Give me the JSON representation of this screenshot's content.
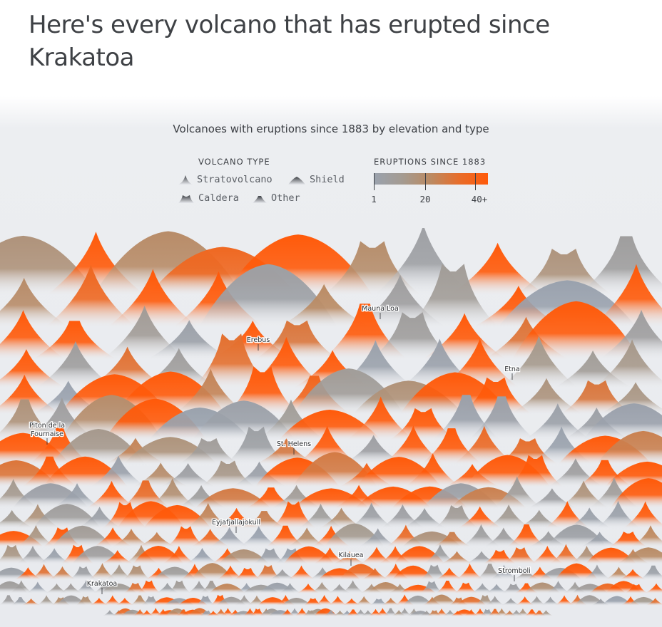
{
  "page": {
    "headline": "Here's every volcano that has erupted since Krakatoa"
  },
  "chart_data": {
    "type": "ridge-glyph",
    "title": "Volcanoes with eruptions since 1883 by elevation and type",
    "legend": {
      "type_title": "VOLCANO TYPE",
      "types": [
        "Stratovolcano",
        "Shield",
        "Caldera",
        "Other"
      ],
      "color_title": "ERUPTIONS SINCE 1883",
      "color_ticks": [
        "1",
        "20",
        "40+"
      ],
      "color_tick_values": [
        1,
        20,
        40
      ],
      "color_range": [
        1,
        40
      ],
      "colors": [
        "#9aa2ae",
        "#a49b91",
        "#bb8a62",
        "#e86d2a",
        "#ff5a0a"
      ]
    },
    "labeled_volcanoes": [
      {
        "name": "Mauna Loa",
        "type": "Shield",
        "eruptions": 40
      },
      {
        "name": "Erebus",
        "type": "Shield",
        "eruptions": 8
      },
      {
        "name": "Etna",
        "type": "Shield",
        "eruptions": 40
      },
      {
        "name": "Piton de la Fournaise",
        "type": "Shield",
        "eruptions": 40
      },
      {
        "name": "St. Helens",
        "type": "Stratovolcano",
        "eruptions": 30
      },
      {
        "name": "Eyjafjallajokull",
        "type": "Stratovolcano",
        "eruptions": 3
      },
      {
        "name": "Kilauea",
        "type": "Shield",
        "eruptions": 40
      },
      {
        "name": "Stromboli",
        "type": "Stratovolcano",
        "eruptions": 20
      },
      {
        "name": "Krakatoa",
        "type": "Caldera",
        "eruptions": 40
      }
    ]
  }
}
